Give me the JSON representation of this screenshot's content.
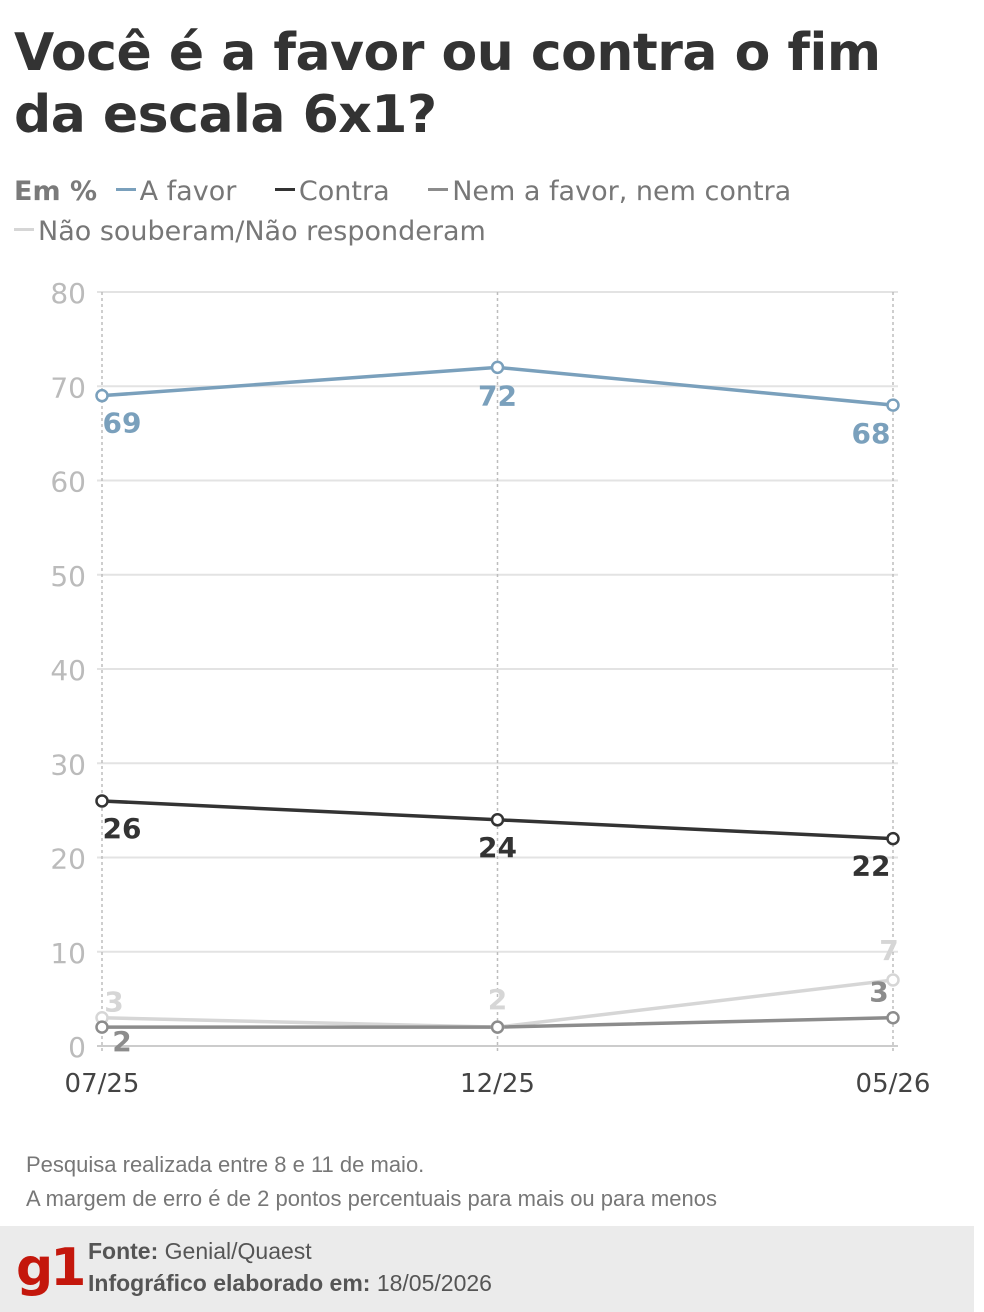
{
  "title": "Você é a favor ou contra o fim da escala 6x1?",
  "legend": {
    "unit": "Em %",
    "items": [
      {
        "label": "A favor",
        "color": "#7aa0bc"
      },
      {
        "label": "Contra",
        "color": "#333333"
      },
      {
        "label": "Nem a favor, nem contra",
        "color": "#8c8c8c"
      },
      {
        "label": "Não souberam/Não responderam",
        "color": "#d6d6d6"
      }
    ]
  },
  "chart_data": {
    "type": "line",
    "x": [
      "07/25",
      "12/25",
      "05/26"
    ],
    "ylim": [
      0,
      80
    ],
    "yticks": [
      0,
      10,
      20,
      30,
      40,
      50,
      60,
      70,
      80
    ],
    "grid": true,
    "legend_position": "top",
    "series": [
      {
        "name": "A favor",
        "values": [
          69,
          72,
          68
        ],
        "color": "#7aa0bc"
      },
      {
        "name": "Contra",
        "values": [
          26,
          24,
          22
        ],
        "color": "#333333"
      },
      {
        "name": "Nem a favor, nem contra",
        "values": [
          2,
          2,
          3
        ],
        "color": "#8c8c8c"
      },
      {
        "name": "Não souberam/Não responderam",
        "values": [
          3,
          2,
          7
        ],
        "color": "#d6d6d6"
      }
    ]
  },
  "notes": [
    "Pesquisa realizada entre 8 e 11 de maio.",
    "A margem de erro é de 2 pontos percentuais para mais ou para menos"
  ],
  "footer": {
    "logo_text": "g1",
    "source_label": "Fonte:",
    "source_value": "Genial/Quaest",
    "date_label": "Infográfico elaborado em:",
    "date_value": "18/05/2026"
  }
}
